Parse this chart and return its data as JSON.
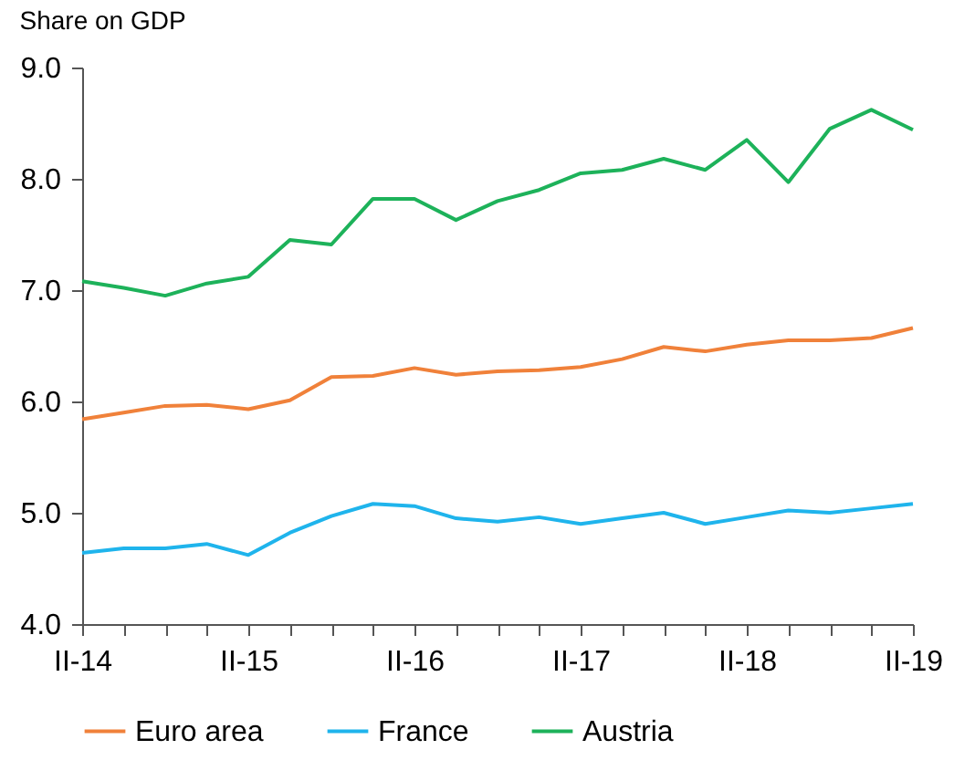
{
  "chart_data": {
    "type": "line",
    "title": "Share on GDP",
    "categories": [
      "II-14",
      null,
      null,
      null,
      "II-15",
      null,
      null,
      null,
      "II-16",
      null,
      null,
      null,
      "II-17",
      null,
      null,
      null,
      "II-18",
      null,
      null,
      null,
      "II-19"
    ],
    "series": [
      {
        "name": "Euro area",
        "color": "#f0813a",
        "values": [
          5.84,
          5.9,
          5.96,
          5.97,
          5.93,
          6.01,
          6.22,
          6.23,
          6.3,
          6.24,
          6.27,
          6.28,
          6.31,
          6.38,
          6.49,
          6.45,
          6.51,
          6.55,
          6.55,
          6.57,
          6.66
        ]
      },
      {
        "name": "France",
        "color": "#1fb4ec",
        "values": [
          4.64,
          4.68,
          4.68,
          4.72,
          4.62,
          4.82,
          4.97,
          5.08,
          5.06,
          4.95,
          4.92,
          4.96,
          4.9,
          4.95,
          5.0,
          4.9,
          4.96,
          5.02,
          5.0,
          5.04,
          5.08
        ]
      },
      {
        "name": "Austria",
        "color": "#1db25a",
        "values": [
          7.08,
          7.02,
          6.95,
          7.06,
          7.12,
          7.45,
          7.41,
          7.82,
          7.82,
          7.63,
          7.8,
          7.9,
          8.05,
          8.08,
          8.18,
          8.08,
          8.35,
          7.97,
          8.45,
          8.62,
          8.44
        ]
      }
    ],
    "ylim": [
      4,
      9
    ],
    "yticks": [
      {
        "value": 4,
        "label": "4.0"
      },
      {
        "value": 5,
        "label": "5.0"
      },
      {
        "value": 6,
        "label": "6.0"
      },
      {
        "value": 7,
        "label": "7.0"
      },
      {
        "value": 8,
        "label": "8.0"
      },
      {
        "value": 9,
        "label": "9.0"
      }
    ],
    "grid": false,
    "legend": "bottom",
    "marker": "none",
    "line_style": "solid"
  }
}
